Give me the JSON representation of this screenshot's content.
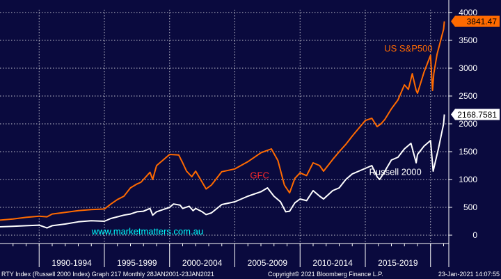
{
  "chart_data": {
    "type": "line",
    "title": "",
    "xlabel": "",
    "ylabel": "",
    "x_period_labels": [
      "1990-1994",
      "1995-1999",
      "2000-2004",
      "2005-2009",
      "2010-2014",
      "2015-2019"
    ],
    "y_ticks": [
      0,
      500,
      1000,
      1500,
      2000,
      2500,
      3000,
      3500,
      4000
    ],
    "xlim": [
      1987,
      2021.4
    ],
    "ylim": [
      -150,
      4050
    ],
    "grid": true,
    "legend": "none",
    "series": [
      {
        "name": "US S&P500",
        "color": "#ff6a00",
        "last_value_label": "3841.47",
        "x": [
          1987.0,
          1988.0,
          1989.0,
          1990.0,
          1990.6,
          1991.0,
          1992.0,
          1993.0,
          1994.0,
          1995.0,
          1995.5,
          1996.0,
          1996.5,
          1997.0,
          1997.5,
          1997.8,
          1998.0,
          1998.5,
          1998.7,
          1999.0,
          1999.5,
          2000.0,
          2000.7,
          2001.0,
          2001.3,
          2001.7,
          2002.0,
          2002.5,
          2002.8,
          2003.2,
          2004.0,
          2005.0,
          2006.0,
          2007.0,
          2007.8,
          2008.3,
          2008.8,
          2009.2,
          2009.6,
          2010.0,
          2010.5,
          2011.0,
          2011.5,
          2011.8,
          2012.5,
          2013.0,
          2013.5,
          2014.0,
          2014.5,
          2015.0,
          2015.5,
          2015.9,
          2016.2,
          2016.5,
          2017.0,
          2017.5,
          2018.0,
          2018.3,
          2018.6,
          2018.9,
          2019.0,
          2019.5,
          2020.0,
          2020.15,
          2020.25,
          2020.5,
          2021.0,
          2021.06
        ],
        "y": [
          270,
          290,
          320,
          340,
          330,
          380,
          410,
          440,
          460,
          470,
          560,
          640,
          700,
          850,
          920,
          950,
          1000,
          1130,
          1000,
          1250,
          1350,
          1450,
          1440,
          1300,
          1150,
          1050,
          1150,
          950,
          830,
          900,
          1140,
          1190,
          1320,
          1480,
          1550,
          1340,
          900,
          760,
          1020,
          1120,
          1070,
          1300,
          1250,
          1150,
          1360,
          1500,
          1630,
          1780,
          1920,
          2060,
          2100,
          1950,
          2000,
          2080,
          2270,
          2430,
          2700,
          2620,
          2900,
          2600,
          2550,
          2930,
          3230,
          2600,
          2900,
          3250,
          3700,
          3841.47
        ]
      },
      {
        "name": "Russell 2000",
        "color": "#ffffff",
        "last_value_label": "2168.7581",
        "x": [
          1987.0,
          1988.0,
          1989.0,
          1990.0,
          1990.6,
          1991.0,
          1992.0,
          1993.0,
          1994.0,
          1995.0,
          1995.5,
          1996.0,
          1996.5,
          1997.0,
          1997.5,
          1998.0,
          1998.5,
          1998.7,
          1999.0,
          1999.5,
          2000.0,
          2000.3,
          2000.8,
          2001.0,
          2001.5,
          2001.8,
          2002.0,
          2002.5,
          2002.8,
          2003.2,
          2004.0,
          2005.0,
          2006.0,
          2007.0,
          2007.5,
          2008.0,
          2008.5,
          2008.9,
          2009.2,
          2009.6,
          2010.0,
          2010.5,
          2011.0,
          2011.5,
          2011.8,
          2012.5,
          2013.0,
          2013.5,
          2014.0,
          2014.5,
          2015.0,
          2015.5,
          2015.9,
          2016.1,
          2016.5,
          2017.0,
          2017.5,
          2018.0,
          2018.5,
          2018.9,
          2019.0,
          2019.5,
          2020.0,
          2020.2,
          2020.35,
          2020.6,
          2021.0,
          2021.06
        ],
        "y": [
          150,
          160,
          170,
          180,
          130,
          170,
          200,
          240,
          260,
          250,
          300,
          330,
          360,
          380,
          420,
          430,
          480,
          360,
          420,
          460,
          500,
          560,
          540,
          480,
          520,
          440,
          480,
          420,
          370,
          400,
          550,
          600,
          700,
          780,
          850,
          700,
          600,
          420,
          430,
          580,
          650,
          620,
          800,
          700,
          650,
          800,
          850,
          1000,
          1100,
          1150,
          1200,
          1250,
          1050,
          1000,
          1150,
          1350,
          1400,
          1550,
          1650,
          1300,
          1450,
          1600,
          1700,
          1150,
          1300,
          1550,
          2000,
          2168.7581
        ]
      }
    ],
    "annotations": [
      {
        "text": "US S&P500",
        "color": "#ff6a00",
        "x": 2018.3,
        "y": 3300
      },
      {
        "text": "Russell 2000",
        "color": "#ffffff",
        "x": 2017.3,
        "y": 1080
      },
      {
        "text": "GFC",
        "color": "#ff2a2a",
        "x": 2006.9,
        "y": 1020
      },
      {
        "text": "www.marketmatters.com.au",
        "color": "#00ffff",
        "x": 1998.3,
        "y": 10
      }
    ]
  },
  "footer": {
    "left": "RTY Index (Russell 2000 Index) Graph 217  Monthly 28JAN2001-23JAN2021",
    "center": "Copyright© 2021 Bloomberg Finance L.P.",
    "right": "23-Jan-2021 14:07:55"
  }
}
